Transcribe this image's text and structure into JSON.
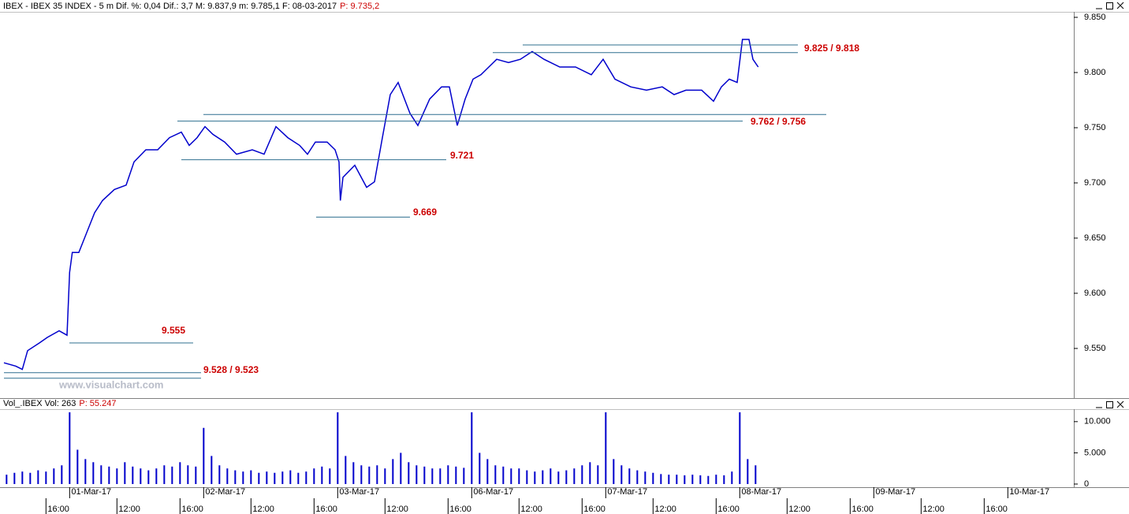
{
  "chart_data": [
    {
      "type": "line",
      "title": "IBEX - IBEX 35 INDEX - 5 m Dif. %: 0,04 Dif.: 3,7 M: 9.837,9 m: 9.785,1 F: 08-03-2017",
      "price_label": "P: 9.735,2",
      "watermark": "www.visualchart.com",
      "color": "#0000cc",
      "x": [
        -50,
        -41,
        -36,
        -32,
        -23,
        -17,
        -8,
        -2,
        0,
        2,
        7,
        13,
        19,
        25,
        34,
        43,
        49,
        58,
        67,
        76,
        85,
        91,
        97,
        103,
        109,
        118,
        127,
        139,
        148,
        157,
        166,
        175,
        181,
        187,
        196,
        202,
        205,
        206,
        208,
        217,
        226,
        232,
        238,
        244,
        250,
        259,
        265,
        274,
        283,
        289,
        295,
        301,
        307,
        313,
        319,
        325,
        334,
        343,
        352,
        361,
        373,
        385,
        397,
        406,
        415,
        427,
        439,
        451,
        460,
        469,
        481,
        490,
        496,
        502,
        508,
        512,
        517,
        520,
        524
      ],
      "values": [
        9537,
        9534,
        9531,
        9548,
        9555,
        9560,
        9566,
        9562,
        9619,
        9637,
        9637,
        9655,
        9673,
        9684,
        9694,
        9698,
        9719,
        9730,
        9730,
        9741,
        9746,
        9734,
        9741,
        9751,
        9744,
        9737,
        9726,
        9730,
        9726,
        9751,
        9741,
        9734,
        9726,
        9737,
        9737,
        9730,
        9719,
        9684,
        9705,
        9716,
        9696,
        9701,
        9741,
        9780,
        9791,
        9763,
        9752,
        9776,
        9787,
        9787,
        9752,
        9776,
        9794,
        9798,
        9805,
        9812,
        9809,
        9812,
        9819,
        9812,
        9805,
        9805,
        9798,
        9812,
        9794,
        9787,
        9784,
        9787,
        9780,
        9784,
        9784,
        9774,
        9787,
        9794,
        9791,
        9830,
        9830,
        9812,
        9805
      ],
      "xlim": [
        -50,
        763
      ],
      "ylim": [
        9505,
        9855
      ],
      "yticks": [
        {
          "value": 9550,
          "label": "9.550"
        },
        {
          "value": 9600,
          "label": "9.600"
        },
        {
          "value": 9650,
          "label": "9.650"
        },
        {
          "value": 9700,
          "label": "9.700"
        },
        {
          "value": 9750,
          "label": "9.750"
        },
        {
          "value": 9800,
          "label": "9.800"
        },
        {
          "value": 9850,
          "label": "9.850"
        }
      ],
      "annotations": [
        {
          "label": "9.825 / 9.818",
          "levels": [
            9825,
            9818
          ]
        },
        {
          "label": "9.762 / 9.756",
          "levels": [
            9762,
            9756
          ]
        },
        {
          "label": "9.721",
          "levels": [
            9721
          ]
        },
        {
          "label": "9.669",
          "levels": [
            9669
          ]
        },
        {
          "label": "9.555",
          "levels": [
            9555
          ]
        },
        {
          "label": "9.528 / 9.523",
          "levels": [
            9528,
            9523
          ]
        }
      ],
      "date_ticks": [
        {
          "value": 0,
          "label": "01-Mar-17"
        },
        {
          "value": 102,
          "label": "02-Mar-17"
        },
        {
          "value": 204,
          "label": "03-Mar-17"
        },
        {
          "value": 306,
          "label": "06-Mar-17"
        },
        {
          "value": 408,
          "label": "07-Mar-17"
        },
        {
          "value": 510,
          "label": "08-Mar-17"
        },
        {
          "value": 612,
          "label": "09-Mar-17"
        },
        {
          "value": 714,
          "label": "10-Mar-17"
        }
      ],
      "xticks": [
        {
          "value": -18,
          "label": "16:00"
        },
        {
          "value": 36,
          "label": "12:00"
        },
        {
          "value": 84,
          "label": "16:00"
        },
        {
          "value": 138,
          "label": "12:00"
        },
        {
          "value": 186,
          "label": "16:00"
        },
        {
          "value": 240,
          "label": "12:00"
        },
        {
          "value": 288,
          "label": "16:00"
        },
        {
          "value": 342,
          "label": "12:00"
        },
        {
          "value": 390,
          "label": "16:00"
        },
        {
          "value": 444,
          "label": "12:00"
        },
        {
          "value": 492,
          "label": "16:00"
        },
        {
          "value": 546,
          "label": "12:00"
        },
        {
          "value": 594,
          "label": "16:00"
        },
        {
          "value": 648,
          "label": "12:00"
        },
        {
          "value": 696,
          "label": "16:00"
        }
      ]
    },
    {
      "type": "bar",
      "title": "Vol_.IBEX Vol: 263",
      "price_label": "P: 55.247",
      "color": "#0000cc",
      "x": [
        -48,
        -42,
        -36,
        -30,
        -24,
        -18,
        -12,
        -6,
        0,
        6,
        12,
        18,
        24,
        30,
        36,
        42,
        48,
        54,
        60,
        66,
        72,
        78,
        84,
        90,
        96,
        102,
        108,
        114,
        120,
        126,
        132,
        138,
        144,
        150,
        156,
        162,
        168,
        174,
        180,
        186,
        192,
        198,
        204,
        210,
        216,
        222,
        228,
        234,
        240,
        246,
        252,
        258,
        264,
        270,
        276,
        282,
        288,
        294,
        300,
        306,
        312,
        318,
        324,
        330,
        336,
        342,
        348,
        354,
        360,
        366,
        372,
        378,
        384,
        390,
        396,
        402,
        408,
        414,
        420,
        426,
        432,
        438,
        444,
        450,
        456,
        462,
        468,
        474,
        480,
        486,
        492,
        498,
        504,
        510,
        516,
        522
      ],
      "values": [
        1500,
        1800,
        2000,
        1800,
        2200,
        2000,
        2500,
        3000,
        11500,
        5500,
        4000,
        3500,
        3000,
        2800,
        2500,
        3500,
        2800,
        2500,
        2200,
        2500,
        3000,
        2800,
        3500,
        3000,
        2800,
        9000,
        4500,
        3000,
        2500,
        2200,
        2000,
        2200,
        1800,
        2000,
        1800,
        2000,
        2200,
        1800,
        2000,
        2500,
        2800,
        2500,
        11500,
        4500,
        3500,
        3000,
        2800,
        3000,
        2500,
        4000,
        5000,
        3500,
        3000,
        2800,
        2500,
        2500,
        3000,
        2800,
        2600,
        11500,
        5000,
        4000,
        3000,
        2800,
        2500,
        2500,
        2200,
        2000,
        2200,
        2500,
        2000,
        2200,
        2500,
        3000,
        3500,
        3000,
        11500,
        4000,
        3000,
        2500,
        2200,
        2000,
        1800,
        1600,
        1500,
        1500,
        1400,
        1500,
        1400,
        1300,
        1500,
        1400,
        2000,
        11500,
        4000,
        3000
      ],
      "ylim": [
        0,
        12000
      ],
      "yticks": [
        0,
        {
          "value": 5000,
          "label": "5.000"
        },
        {
          "value": 10000,
          "label": "10.000"
        }
      ]
    }
  ]
}
